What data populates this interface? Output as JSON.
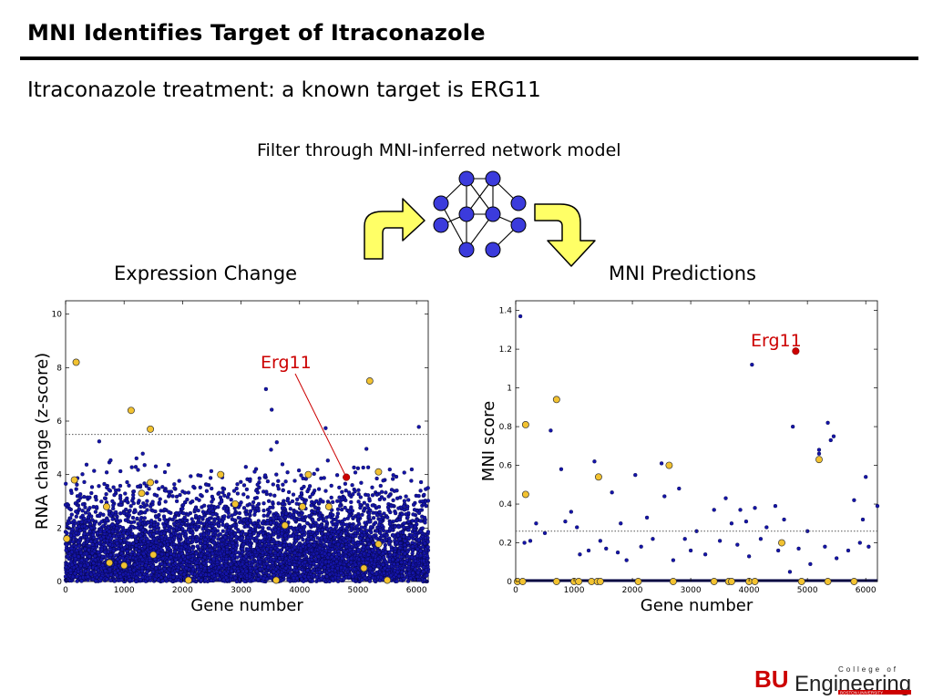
{
  "slide": {
    "title": "MNI Identifies Target of Itraconazole",
    "subtitle": "Itraconazole treatment: a known target is ERG11",
    "filter_label": "Filter through MNI-inferred network model",
    "colors": {
      "accent": "#cc0000",
      "dot": "#1414a8",
      "highlight": "#f2c230",
      "arrow": "#ffff66",
      "node": "#3b3bdc"
    }
  },
  "logo": {
    "bu": "BU",
    "engineering": "Engineering",
    "college_of": "College of",
    "boston_university": "BOSTON UNIVERSITY"
  },
  "chart_data": [
    {
      "type": "scatter",
      "title": "Expression Change",
      "xlabel": "Gene number",
      "ylabel": "RNA change (z-score)",
      "xlim": [
        0,
        6200
      ],
      "ylim": [
        0,
        10.5
      ],
      "xticks": [
        0,
        1000,
        2000,
        3000,
        4000,
        5000,
        6000
      ],
      "yticks": [
        0,
        2,
        4,
        6,
        8,
        10
      ],
      "threshold": 5.5,
      "n_background_genes": 6200,
      "highlighted_points": [
        [
          180,
          8.2
        ],
        [
          1120,
          6.4
        ],
        [
          1450,
          5.7
        ],
        [
          1300,
          3.3
        ],
        [
          1450,
          3.7
        ],
        [
          700,
          2.8
        ],
        [
          2650,
          4.0
        ],
        [
          2900,
          2.9
        ],
        [
          3750,
          2.1
        ],
        [
          4150,
          4.0
        ],
        [
          4050,
          2.8
        ],
        [
          4500,
          2.8
        ],
        [
          5200,
          7.5
        ],
        [
          5350,
          4.1
        ],
        [
          5350,
          1.4
        ],
        [
          150,
          3.8
        ],
        [
          20,
          1.6
        ],
        [
          750,
          0.7
        ],
        [
          1000,
          0.6
        ],
        [
          1500,
          1.0
        ],
        [
          2100,
          0.05
        ],
        [
          3600,
          0.05
        ],
        [
          5100,
          0.5
        ],
        [
          5500,
          0.05
        ]
      ],
      "target": {
        "label": "Erg11",
        "x": 4800,
        "y": 3.9
      }
    },
    {
      "type": "scatter",
      "title": "MNI Predictions",
      "xlabel": "Gene number",
      "ylabel": "MNI score",
      "xlim": [
        0,
        6200
      ],
      "ylim": [
        0,
        1.45
      ],
      "xticks": [
        0,
        1000,
        2000,
        3000,
        4000,
        5000,
        6000
      ],
      "yticks": [
        0,
        0.2,
        0.4,
        0.6,
        0.8,
        1,
        1.2,
        1.4
      ],
      "ytick_labels": [
        "0",
        "0.2",
        "0.4",
        "0.6",
        "0.8",
        "1",
        "1.2",
        "1.4"
      ],
      "threshold": 0.26,
      "points": [
        [
          80,
          1.37
        ],
        [
          150,
          0.2
        ],
        [
          250,
          0.21
        ],
        [
          350,
          0.3
        ],
        [
          500,
          0.25
        ],
        [
          600,
          0.78
        ],
        [
          780,
          0.58
        ],
        [
          850,
          0.31
        ],
        [
          950,
          0.36
        ],
        [
          1050,
          0.28
        ],
        [
          1100,
          0.14
        ],
        [
          1250,
          0.16
        ],
        [
          1350,
          0.62
        ],
        [
          1450,
          0.21
        ],
        [
          1550,
          0.17
        ],
        [
          1650,
          0.46
        ],
        [
          1750,
          0.15
        ],
        [
          1800,
          0.3
        ],
        [
          1900,
          0.11
        ],
        [
          2050,
          0.55
        ],
        [
          2150,
          0.18
        ],
        [
          2250,
          0.33
        ],
        [
          2350,
          0.22
        ],
        [
          2500,
          0.61
        ],
        [
          2550,
          0.44
        ],
        [
          2700,
          0.11
        ],
        [
          2800,
          0.48
        ],
        [
          2900,
          0.22
        ],
        [
          3000,
          0.16
        ],
        [
          3100,
          0.26
        ],
        [
          3250,
          0.14
        ],
        [
          3400,
          0.37
        ],
        [
          3500,
          0.21
        ],
        [
          3600,
          0.43
        ],
        [
          3700,
          0.3
        ],
        [
          3800,
          0.19
        ],
        [
          3850,
          0.37
        ],
        [
          3950,
          0.31
        ],
        [
          4000,
          0.13
        ],
        [
          4050,
          1.12
        ],
        [
          4100,
          0.38
        ],
        [
          4200,
          0.22
        ],
        [
          4300,
          0.28
        ],
        [
          4450,
          0.39
        ],
        [
          4500,
          0.16
        ],
        [
          4600,
          0.32
        ],
        [
          4700,
          0.05
        ],
        [
          4750,
          0.8
        ],
        [
          4850,
          0.17
        ],
        [
          5000,
          0.26
        ],
        [
          5050,
          0.09
        ],
        [
          5200,
          0.68
        ],
        [
          5200,
          0.66
        ],
        [
          5300,
          0.18
        ],
        [
          5350,
          0.82
        ],
        [
          5400,
          0.73
        ],
        [
          5450,
          0.75
        ],
        [
          5500,
          0.12
        ],
        [
          5700,
          0.16
        ],
        [
          5800,
          0.42
        ],
        [
          5900,
          0.2
        ],
        [
          5950,
          0.32
        ],
        [
          6000,
          0.54
        ],
        [
          6050,
          0.18
        ],
        [
          6200,
          0.39
        ]
      ],
      "highlighted_points": [
        [
          170,
          0.81
        ],
        [
          170,
          0.45
        ],
        [
          700,
          0.94
        ],
        [
          1420,
          0.54
        ],
        [
          2630,
          0.6
        ],
        [
          4560,
          0.2
        ],
        [
          5200,
          0.63
        ],
        [
          30,
          0.0
        ],
        [
          120,
          0.0
        ],
        [
          700,
          0.0
        ],
        [
          1000,
          0.0
        ],
        [
          1080,
          0.0
        ],
        [
          1300,
          0.0
        ],
        [
          1400,
          0.0
        ],
        [
          1450,
          0.0
        ],
        [
          2100,
          0.0
        ],
        [
          2700,
          0.0
        ],
        [
          3400,
          0.0
        ],
        [
          3650,
          0.0
        ],
        [
          3700,
          0.0
        ],
        [
          4000,
          0.0
        ],
        [
          4100,
          0.0
        ],
        [
          4900,
          0.0
        ],
        [
          5350,
          0.0
        ],
        [
          5800,
          0.0
        ]
      ],
      "target": {
        "label": "Erg11",
        "x": 4800,
        "y": 1.19
      }
    }
  ]
}
